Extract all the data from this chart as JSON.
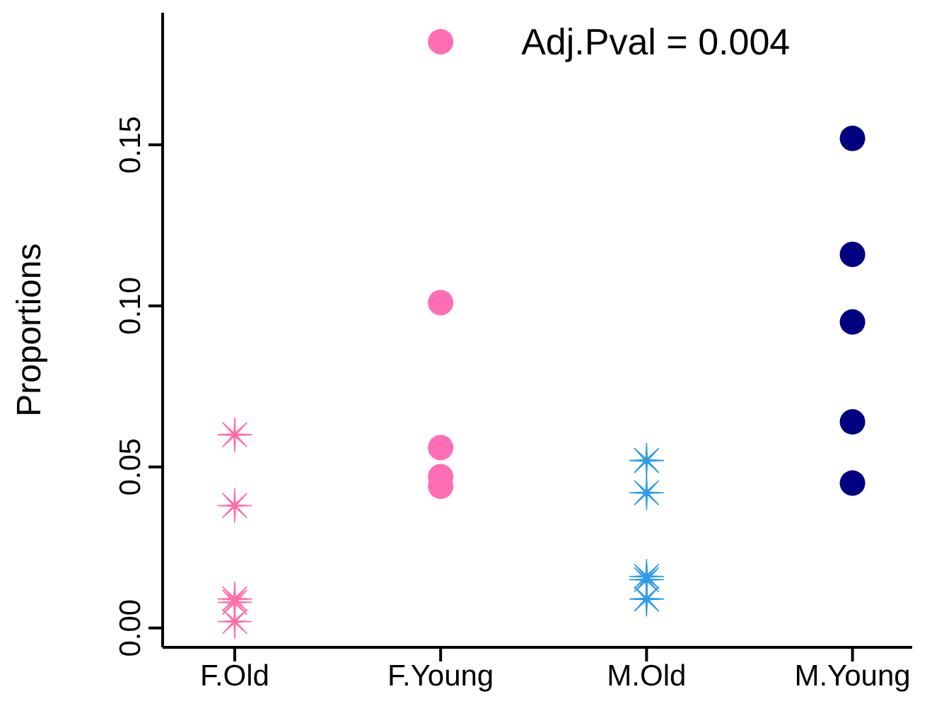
{
  "chart_data": {
    "type": "scatter",
    "ylabel": "Proportions",
    "categories": [
      "F.Old",
      "F.Young",
      "M.Old",
      "M.Young"
    ],
    "ylim": [
      -0.006,
      0.191
    ],
    "yticks": [
      {
        "value": 0,
        "label": "0.00"
      },
      {
        "value": 0.05,
        "label": "0.05"
      },
      {
        "value": 0.1,
        "label": "0.10"
      },
      {
        "value": 0.15,
        "label": "0.15"
      }
    ],
    "grid": false,
    "annotations": [
      {
        "text": "Adj.Pval = 0.004",
        "x": "F.Young",
        "y": 0.182
      }
    ],
    "series": [
      {
        "color": "#ff6fa8",
        "marker": "cross",
        "x": [
          "F.Old",
          "F.Old",
          "F.Old",
          "F.Old",
          "F.Old"
        ],
        "values": [
          0.06,
          0.038,
          0.009,
          0.008,
          0.002
        ]
      },
      {
        "color": "#ff6eb4",
        "marker": "circle",
        "x": [
          "F.Young",
          "F.Young",
          "F.Young",
          "F.Young"
        ],
        "values": [
          0.101,
          0.056,
          0.047,
          0.044
        ]
      },
      {
        "color": "#2f9be8",
        "marker": "cross",
        "x": [
          "M.Old",
          "M.Old",
          "M.Old",
          "M.Old",
          "M.Old"
        ],
        "values": [
          0.052,
          0.042,
          0.016,
          0.015,
          0.009
        ]
      },
      {
        "color": "#000080",
        "marker": "circle",
        "x": [
          "M.Young",
          "M.Young",
          "M.Young",
          "M.Young",
          "M.Young"
        ],
        "values": [
          0.152,
          0.116,
          0.095,
          0.064,
          0.045
        ]
      }
    ]
  }
}
